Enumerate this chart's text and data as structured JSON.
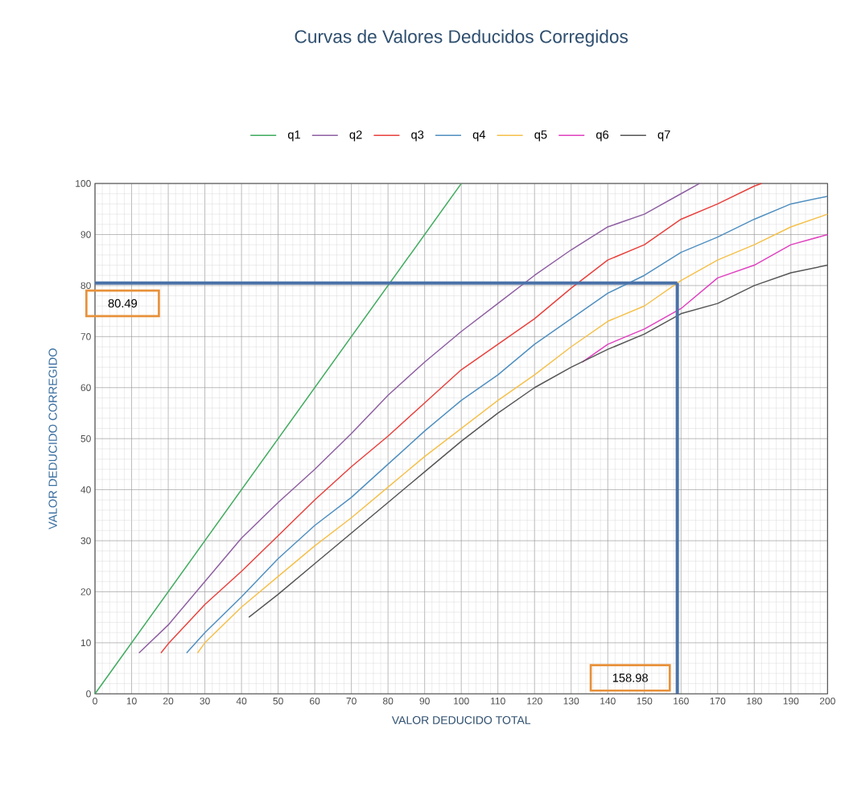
{
  "chart_data": {
    "type": "line",
    "title": "Curvas de Valores Deducidos Corregidos",
    "xlabel": "VALOR DEDUCIDO TOTAL",
    "ylabel": "VALOR DEDUCIDO CORREGIDO",
    "xlim": [
      0,
      200
    ],
    "ylim": [
      0,
      100
    ],
    "xticks": [
      0,
      10,
      20,
      30,
      40,
      50,
      60,
      70,
      80,
      90,
      100,
      110,
      120,
      130,
      140,
      150,
      160,
      170,
      180,
      190,
      200
    ],
    "yticks": [
      0,
      10,
      20,
      30,
      40,
      50,
      60,
      70,
      80,
      90,
      100
    ],
    "grid": true,
    "legend": "top",
    "series": [
      {
        "name": "q1",
        "color": "#3daa5c",
        "x": [
          0,
          100
        ],
        "values": [
          0,
          100
        ]
      },
      {
        "name": "q2",
        "color": "#8e5ea2",
        "x": [
          12,
          20,
          30,
          40,
          50,
          60,
          70,
          80,
          90,
          100,
          110,
          120,
          130,
          140,
          150,
          160,
          165
        ],
        "values": [
          8,
          13.5,
          22,
          30.5,
          37.5,
          44,
          51,
          58.5,
          65,
          71,
          76.5,
          82,
          87,
          91.5,
          94,
          98,
          100
        ]
      },
      {
        "name": "q3",
        "color": "#e8403c",
        "x": [
          18,
          20,
          30,
          40,
          50,
          60,
          70,
          80,
          90,
          100,
          110,
          120,
          130,
          140,
          150,
          160,
          170,
          180,
          182
        ],
        "values": [
          8,
          9.8,
          17.5,
          24,
          31,
          38,
          44.5,
          50.5,
          57,
          63.5,
          68.5,
          73.5,
          79.5,
          85,
          88,
          93,
          96,
          99.5,
          100
        ]
      },
      {
        "name": "q4",
        "color": "#4f8fc0",
        "x": [
          25,
          30,
          40,
          50,
          60,
          70,
          80,
          90,
          100,
          110,
          120,
          130,
          140,
          150,
          160,
          170,
          180,
          190,
          200
        ],
        "values": [
          8,
          12,
          19,
          26.5,
          33,
          38.5,
          45,
          51.5,
          57.5,
          62.5,
          68.5,
          73.5,
          78.5,
          82,
          86.5,
          89.5,
          93,
          96,
          97.5
        ]
      },
      {
        "name": "q5",
        "color": "#f5c04a",
        "x": [
          28,
          30,
          40,
          50,
          60,
          70,
          80,
          90,
          100,
          110,
          120,
          130,
          140,
          150,
          160,
          170,
          180,
          190,
          200
        ],
        "values": [
          8,
          10,
          17,
          23,
          29,
          34.5,
          40.5,
          46.5,
          52,
          57.5,
          62.5,
          68,
          73,
          76,
          81,
          85,
          88,
          91.5,
          94
        ]
      },
      {
        "name": "q6",
        "color": "#e040c0",
        "x": [
          133,
          140,
          150,
          160,
          170,
          180,
          190,
          200
        ],
        "values": [
          65,
          68.5,
          71.5,
          75.5,
          81.5,
          84,
          88,
          90
        ]
      },
      {
        "name": "q7",
        "color": "#555555",
        "x": [
          42,
          50,
          60,
          70,
          80,
          90,
          100,
          110,
          120,
          130,
          140,
          150,
          160,
          170,
          180,
          190,
          200
        ],
        "values": [
          15,
          19.5,
          25.5,
          31.5,
          37.5,
          43.5,
          49.5,
          55,
          60,
          64,
          67.5,
          70.5,
          74.5,
          76.5,
          80,
          82.5,
          84
        ]
      }
    ],
    "ref_lines": [
      {
        "axis": "y",
        "value": 80.49,
        "label": "80.49",
        "color": "#4a72a8"
      },
      {
        "axis": "x",
        "value": 158.98,
        "label": "158.98",
        "color": "#4a72a8"
      }
    ]
  }
}
